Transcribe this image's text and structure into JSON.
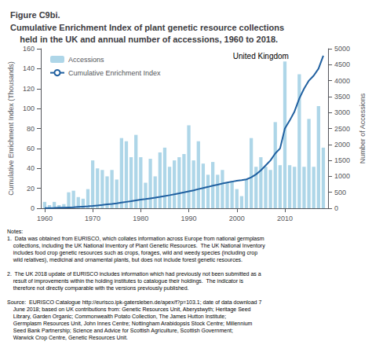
{
  "chart_data": {
    "type": "bar",
    "title": "Figure C9bi.",
    "subtitle": "Cumulative Enrichment Index of plant genetic resource collections\n    held in the UK and annual number of accessions, 1960 to 2018.",
    "ylabel": "Cumulative Enrichment Index (Thousands)",
    "y2label": "Number of Accessions",
    "x": [
      1960,
      1961,
      1962,
      1963,
      1964,
      1965,
      1966,
      1967,
      1968,
      1969,
      1970,
      1971,
      1972,
      1973,
      1974,
      1975,
      1976,
      1977,
      1978,
      1979,
      1980,
      1981,
      1982,
      1983,
      1984,
      1985,
      1986,
      1987,
      1988,
      1989,
      1990,
      1991,
      1992,
      1993,
      1994,
      1995,
      1996,
      1997,
      1998,
      1999,
      2000,
      2001,
      2002,
      2003,
      2004,
      2005,
      2006,
      2007,
      2008,
      2009,
      2010,
      2011,
      2012,
      2013,
      2014,
      2015,
      2016,
      2017,
      2018
    ],
    "series": [
      {
        "name": "Accessions",
        "type": "bar",
        "axis": "y2",
        "color": "#aed6e8",
        "values": [
          200,
          100,
          200,
          100,
          130,
          500,
          550,
          350,
          300,
          600,
          1500,
          1250,
          1200,
          1000,
          1200,
          900,
          2200,
          2100,
          1600,
          2300,
          1600,
          800,
          1550,
          1000,
          1750,
          1900,
          1300,
          1500,
          1600,
          1700,
          2600,
          1500,
          2100,
          1400,
          1050,
          1450,
          1050,
          1200,
          800,
          850,
          600,
          380,
          900,
          2200,
          1300,
          1600,
          1300,
          1200,
          2700,
          1350,
          4600,
          1350,
          1300,
          4200,
          1300,
          2800,
          1300,
          3200,
          1900
        ]
      },
      {
        "name": "Cumulative Enrichment Index",
        "type": "line",
        "color": "#2060a0",
        "values": [
          0.1,
          0.2,
          0.3,
          0.5,
          0.6,
          0.8,
          1.0,
          1.3,
          1.6,
          1.9,
          2.3,
          2.8,
          3.3,
          3.9,
          4.4,
          5.0,
          5.7,
          6.4,
          7.1,
          7.9,
          8.6,
          9.2,
          9.9,
          10.6,
          11.4,
          12.3,
          13.1,
          14.0,
          14.9,
          15.9,
          17.0,
          18.0,
          19.2,
          20.3,
          21.4,
          22.6,
          23.7,
          24.9,
          25.8,
          26.7,
          27.5,
          28.1,
          29.0,
          31.0,
          34.0,
          38.0,
          43.0,
          48.0,
          55.0,
          60.0,
          80.0,
          88.0,
          97.0,
          110.0,
          120.0,
          128.0,
          133.0,
          140.0,
          153.0
        ]
      }
    ],
    "xlim": [
      1959.2,
      2019.0
    ],
    "xticks": [
      1960,
      1970,
      1980,
      1990,
      2000,
      2010
    ],
    "ylim": [
      0,
      160
    ],
    "yticks": [
      0,
      20,
      40,
      60,
      80,
      100,
      120,
      140,
      160
    ],
    "y2lim": [
      0,
      5000
    ],
    "y2ticks": [
      0,
      500,
      1000,
      1500,
      2000,
      2500,
      3000,
      3500,
      4000,
      4500,
      5000
    ],
    "grid": false,
    "legend": "upper left",
    "annotations": [
      {
        "text": "United Kingdom",
        "x": 2005,
        "y": 158
      },
      {
        "text": "Notes:\n1.  Data was obtained from EURISCO, which collates information across Europe from national germplasm\n    collections, including the UK National Inventory of Plant Genetic Resources.  The UK National Inventory\n    includes food crop genetic resources such as crops, forages, wild and weedy species (including crop\n    wild relatives), medicinal and ornamental plants, but does not include forest genetic resources.\n\n2.  The UK 2018 update of EURISCO includes information which had previously not been submitted as a\n    result of improvements within the holding institutes to catalogue their holdings.  The indicator is\n    therefore not directly comparable with the versions previously published.\n\nSource:  EURISCO Catalogue http://eurisco.ipk-gatersleben.de/apex/f?p=103.1; date of data download 7\n    June 2018; based on UK contributions from: Genetic Resources Unit, Aberystwyth; Heritage Seed\n    Library, Garden Organic; Commonwealth Potato Collection, The James Hutton Institute;\n    Germplasm Resources Unit, John Innes Centre; Nottingham Arabidopsis Stock Centre; Millennium\n    Seed Bank Partnership; Science and Advice for Scottish Agriculture, Scottish Government;\n    Warwick Crop Centre, Genetic Resources Unit."
      }
    ]
  }
}
